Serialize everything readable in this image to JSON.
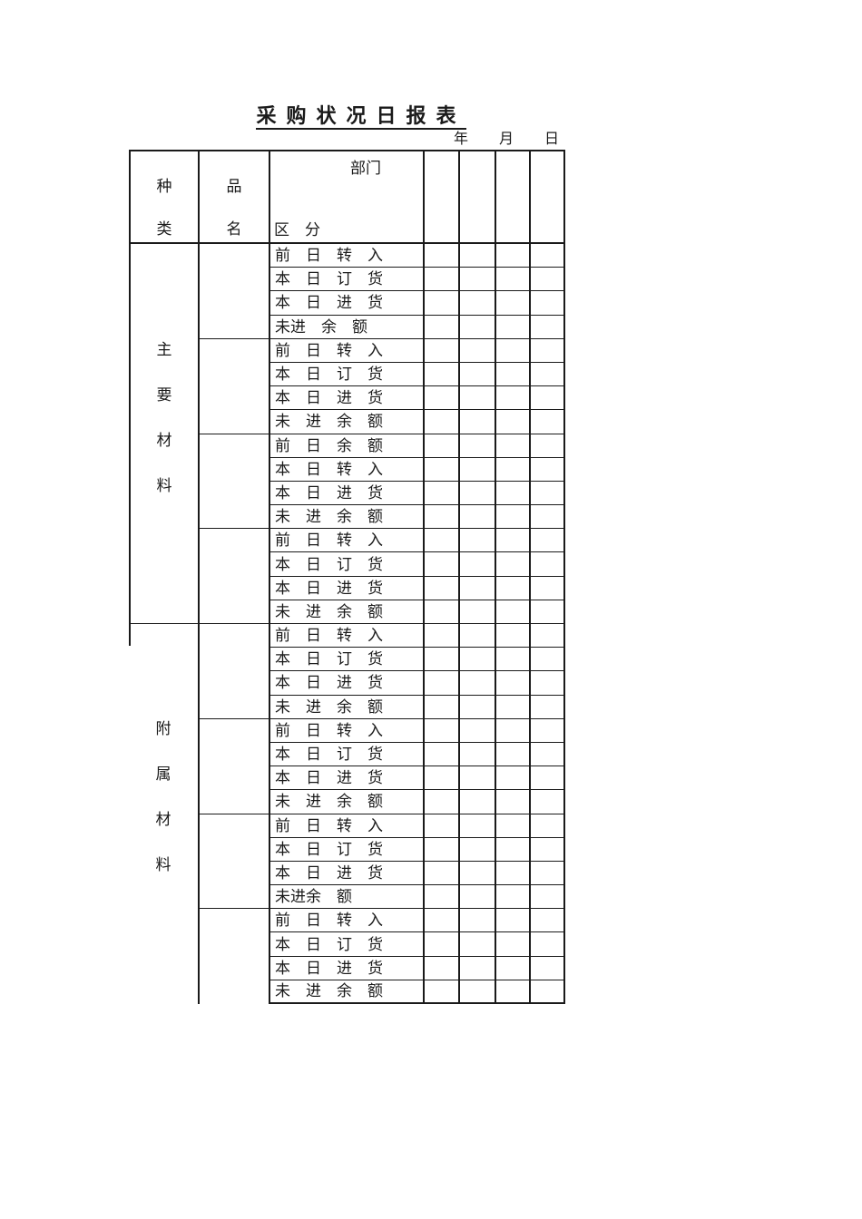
{
  "colors": {
    "ink": "#1a1a1a",
    "paper": "#ffffff"
  },
  "document": {
    "title": "采购状况日报表",
    "date_line": {
      "year": "年",
      "month": "月",
      "day": "日"
    }
  },
  "table": {
    "header": {
      "category_column_chars": [
        "种",
        "类"
      ],
      "product_column_chars": [
        "品",
        "名"
      ],
      "corner": {
        "department": "部门",
        "division": "区　分"
      }
    },
    "data_columns": 4,
    "sections": [
      {
        "name": "main-materials",
        "label_chars": [
          "主",
          "要",
          "材",
          "料"
        ],
        "groups": [
          {
            "rows": [
              "前　日　转　入",
              "本　日　订　货",
              "本　日　进　货",
              "未进　余　额"
            ]
          },
          {
            "rows": [
              "前　日　转　入",
              "本　日　订　货",
              "本　日　进　货",
              "未　进　余　额"
            ]
          },
          {
            "rows": [
              "前　日　余　额",
              "本　日　转　入",
              "本　日　进　货",
              "未　进　余　额"
            ]
          },
          {
            "rows": [
              "前　日　转　入",
              "本　日　订　货",
              "本　日　进　货",
              "未　进　余　额"
            ]
          }
        ]
      },
      {
        "name": "auxiliary-materials",
        "label_chars": [
          "附",
          "属",
          "材",
          "料"
        ],
        "groups": [
          {
            "rows": [
              "前　日　转　入",
              "本　日　订　货",
              "本　日　进　货",
              "未　进　余　额"
            ]
          },
          {
            "rows": [
              "前　日　转　入",
              "本　日　订　货",
              "本　日　进　货",
              "未　进　余　额"
            ]
          },
          {
            "rows": [
              "前　日　转　入",
              "本　日　订　货",
              "本　日　进　货",
              "未进余　额"
            ]
          },
          {
            "rows": [
              "前　日　转　入",
              "本　日　订　货",
              "本　日　进　货",
              "未　进　余　额"
            ]
          }
        ]
      }
    ]
  }
}
